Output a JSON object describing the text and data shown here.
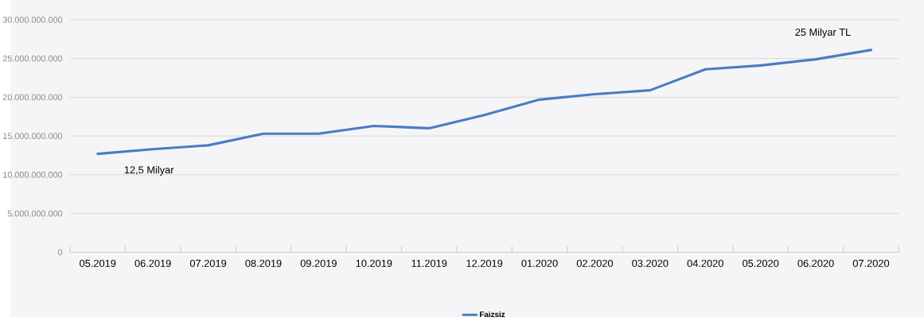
{
  "chart_data": {
    "type": "line",
    "categories": [
      "05.2019",
      "06.2019",
      "07.2019",
      "08.2019",
      "09.2019",
      "10.2019",
      "11.2019",
      "12.2019",
      "01.2020",
      "02.2020",
      "03.2020",
      "04.2020",
      "05.2020",
      "06.2020",
      "07.2020"
    ],
    "series": [
      {
        "name": "Faizsiz",
        "color": "#4a7cc4",
        "values": [
          12700000000,
          13300000000,
          13800000000,
          15300000000,
          15300000000,
          16300000000,
          16000000000,
          17700000000,
          19700000000,
          20400000000,
          20900000000,
          23600000000,
          24100000000,
          24900000000,
          26100000000
        ]
      }
    ],
    "ylim": [
      0,
      30000000000
    ],
    "yticks": [
      {
        "value": 0,
        "label": "0"
      },
      {
        "value": 5000000000,
        "label": "5.000.000.000"
      },
      {
        "value": 10000000000,
        "label": "10.000.000.000"
      },
      {
        "value": 15000000000,
        "label": "15.000.000.000"
      },
      {
        "value": 20000000000,
        "label": "20.000.000.000"
      },
      {
        "value": 25000000000,
        "label": "25.000.000.000"
      },
      {
        "value": 30000000000,
        "label": "30.000.000.000"
      }
    ],
    "annotations": [
      "12,5 Milyar",
      "25 Milyar TL"
    ],
    "grid": "y",
    "legend": "bottom",
    "marker": "none",
    "line_style": "solid"
  }
}
